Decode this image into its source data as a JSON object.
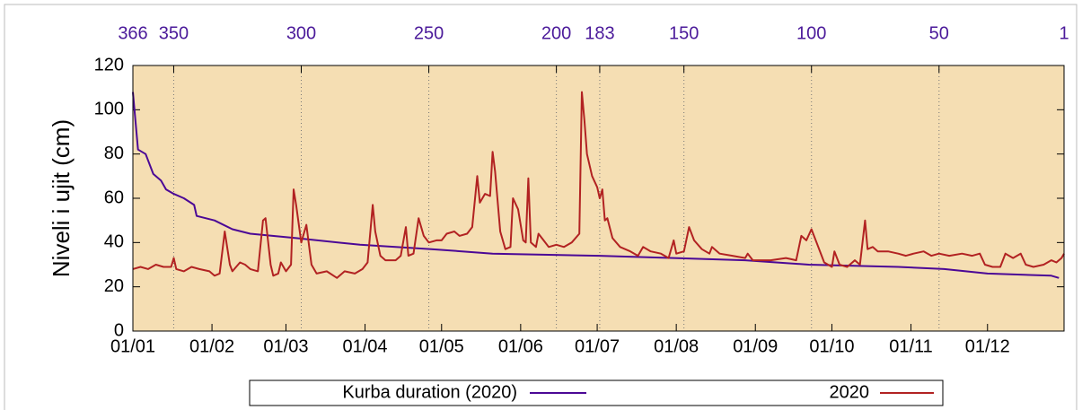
{
  "chart_data": {
    "type": "line",
    "y_label": "Niveli i ujit (cm)",
    "xlim": [
      0,
      365
    ],
    "xticks": [
      {
        "value": 0,
        "label": "01/01"
      },
      {
        "value": 31,
        "label": "01/02"
      },
      {
        "value": 60,
        "label": "01/03"
      },
      {
        "value": 91,
        "label": "01/04"
      },
      {
        "value": 121,
        "label": "01/05"
      },
      {
        "value": 152,
        "label": "01/06"
      },
      {
        "value": 182,
        "label": "01/07"
      },
      {
        "value": 213,
        "label": "01/08"
      },
      {
        "value": 244,
        "label": "01/09"
      },
      {
        "value": 274,
        "label": "01/10"
      },
      {
        "value": 305,
        "label": "01/11"
      },
      {
        "value": 335,
        "label": "01/12"
      }
    ],
    "x2lim": [
      366,
      1
    ],
    "x2ticks": [
      366,
      350,
      300,
      250,
      200,
      183,
      150,
      100,
      50,
      1
    ],
    "ylim": [
      0,
      120
    ],
    "yticks": [
      0,
      20,
      40,
      60,
      80,
      100,
      120
    ],
    "grid": true,
    "background": "#f5deb3",
    "series": [
      {
        "name": "Kurba duration (2020)",
        "color": "#4b0896",
        "axis": "x2",
        "x": [
          366,
          364,
          361,
          358,
          355,
          353,
          350,
          346,
          342,
          341,
          334,
          327,
          320,
          302,
          277,
          249,
          225,
          183,
          154,
          126,
          101,
          66,
          48,
          31,
          6,
          3
        ],
        "values": [
          108,
          82,
          80,
          71,
          68,
          64,
          62,
          60,
          57,
          52,
          50,
          46,
          44,
          42,
          39,
          37,
          35,
          34,
          33,
          32,
          30,
          29,
          28,
          26,
          25,
          24
        ]
      },
      {
        "name": "2020",
        "color": "#b22222",
        "x": [
          0,
          3,
          6,
          9,
          12,
          15,
          16,
          17,
          20,
          23,
          26,
          30,
          32,
          34,
          36,
          38,
          39,
          42,
          44,
          46,
          49,
          51,
          52,
          54,
          55,
          57,
          58,
          60,
          62,
          63,
          64,
          66,
          68,
          70,
          72,
          76,
          80,
          83,
          87,
          90,
          92,
          94,
          95,
          97,
          99,
          103,
          105,
          107,
          108,
          110,
          112,
          114,
          116,
          119,
          121,
          123,
          126,
          128,
          131,
          133,
          135,
          136,
          138,
          140,
          141,
          142,
          144,
          146,
          148,
          149,
          151,
          153,
          154,
          155,
          156,
          158,
          159,
          161,
          163,
          166,
          169,
          172,
          175,
          176,
          177,
          178,
          180,
          182,
          183,
          184,
          185,
          186,
          188,
          191,
          195,
          198,
          200,
          203,
          207,
          210,
          212,
          213,
          216,
          218,
          220,
          223,
          226,
          227,
          230,
          235,
          240,
          241,
          243,
          250,
          256,
          260,
          262,
          264,
          266,
          268,
          271,
          274,
          275,
          277,
          280,
          283,
          285,
          287,
          288,
          290,
          292,
          296,
          300,
          303,
          306,
          310,
          313,
          316,
          320,
          325,
          329,
          332,
          334,
          337,
          340,
          342,
          345,
          348,
          350,
          353,
          357,
          360,
          362,
          364,
          365
        ],
        "values": [
          28,
          29,
          28,
          30,
          29,
          29,
          33,
          28,
          27,
          29,
          28,
          27,
          25,
          26,
          45,
          30,
          27,
          31,
          30,
          28,
          27,
          50,
          51,
          30,
          25,
          26,
          31,
          27,
          30,
          64,
          57,
          40,
          48,
          30,
          26,
          27,
          24,
          27,
          26,
          28,
          31,
          57,
          45,
          34,
          32,
          32,
          34,
          47,
          34,
          35,
          51,
          43,
          40,
          41,
          41,
          44,
          45,
          43,
          44,
          47,
          70,
          58,
          62,
          61,
          81,
          72,
          45,
          37,
          38,
          60,
          55,
          41,
          40,
          69,
          40,
          38,
          44,
          41,
          38,
          39,
          38,
          40,
          44,
          108,
          95,
          80,
          70,
          65,
          60,
          64,
          50,
          51,
          42,
          38,
          36,
          34,
          38,
          36,
          35,
          33,
          41,
          35,
          36,
          47,
          41,
          37,
          35,
          38,
          35,
          34,
          33,
          35,
          32,
          32,
          33,
          32,
          43,
          41,
          46,
          40,
          31,
          29,
          36,
          30,
          29,
          32,
          30,
          50,
          37,
          38,
          36,
          36,
          35,
          34,
          35,
          36,
          34,
          35,
          34,
          35,
          34,
          35,
          30,
          29,
          29,
          35,
          33,
          35,
          30,
          29,
          30,
          32,
          31,
          33,
          35
        ]
      }
    ]
  }
}
